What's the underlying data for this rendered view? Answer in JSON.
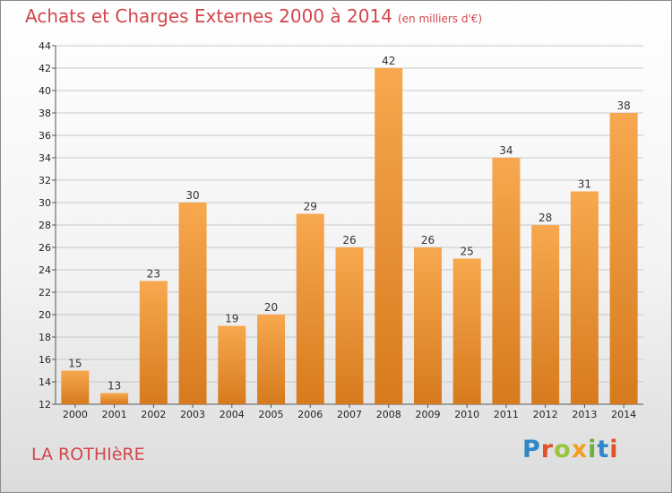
{
  "header": {
    "title": "Achats et Charges Externes 2000 à 2014",
    "unit": "(en milliers d'€)"
  },
  "footer": {
    "place": "LA ROTHIèRE",
    "logo_letters": [
      "P",
      "r",
      "o",
      "x",
      "i",
      "t",
      "i"
    ],
    "logo_colors": [
      "#2f86c9",
      "#e0522b",
      "#9ac43b",
      "#f0a01e",
      "#6bb13b",
      "#2f86c9",
      "#e0522b"
    ]
  },
  "colors": {
    "bar_top": "#f7a84e",
    "bar_bottom": "#d77a1e",
    "grid": "#c8c8c8",
    "title": "#d2464c"
  },
  "chart_data": {
    "type": "bar",
    "title": "Achats et Charges Externes 2000 à 2014",
    "subtitle": "(en milliers d'€)",
    "xlabel": "",
    "ylabel": "",
    "categories": [
      "2000",
      "2001",
      "2002",
      "2003",
      "2004",
      "2005",
      "2006",
      "2007",
      "2008",
      "2009",
      "2010",
      "2011",
      "2012",
      "2013",
      "2014"
    ],
    "values": [
      15,
      13,
      23,
      30,
      19,
      20,
      29,
      26,
      42,
      26,
      25,
      34,
      28,
      31,
      38
    ],
    "ylim": [
      12,
      44
    ],
    "yticks": [
      12,
      14,
      16,
      18,
      20,
      22,
      24,
      26,
      28,
      30,
      32,
      34,
      36,
      38,
      40,
      42,
      44
    ],
    "grid": true,
    "data_labels": true
  }
}
